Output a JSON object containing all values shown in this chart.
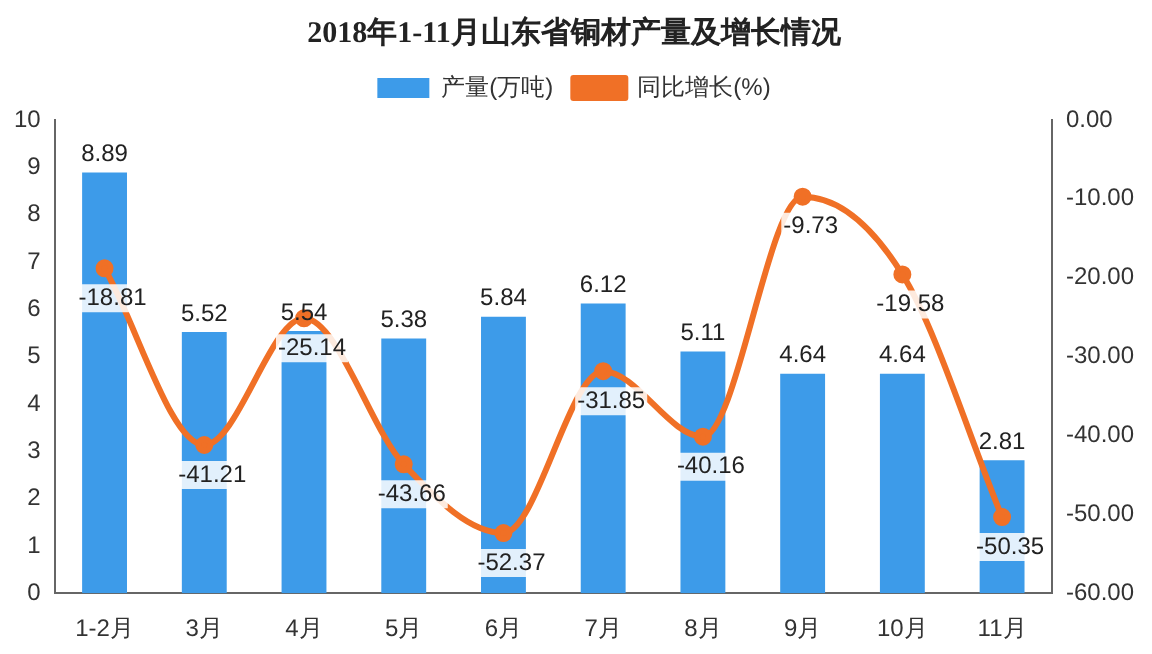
{
  "chart_data": {
    "type": "bar",
    "title": "2018年1-11月山东省铜材产量及增长情况",
    "categories": [
      "1-2月",
      "3月",
      "4月",
      "5月",
      "6月",
      "7月",
      "8月",
      "9月",
      "10月",
      "11月"
    ],
    "series": [
      {
        "name": "产量(万吨)",
        "color": "#3d9be9",
        "values": [
          8.89,
          5.52,
          5.54,
          5.38,
          5.84,
          6.12,
          5.11,
          4.64,
          4.64,
          2.81
        ]
      },
      {
        "name": "同比增长(%)",
        "type": "line",
        "axis": "y2",
        "color": "#f07026",
        "values": [
          -18.81,
          -41.21,
          -25.14,
          -43.66,
          -52.37,
          -31.85,
          -40.16,
          -9.73,
          -19.58,
          -50.35
        ]
      }
    ],
    "ylim": [
      0,
      10
    ],
    "yticks": [
      0,
      1,
      2,
      3,
      4,
      5,
      6,
      7,
      8,
      9,
      10
    ],
    "y2lim": [
      -60,
      0
    ],
    "y2ticks": [
      {
        "value": 0,
        "label": "0.00"
      },
      {
        "value": -10,
        "label": "-10.00"
      },
      {
        "value": -20,
        "label": "-20.00"
      },
      {
        "value": -30,
        "label": "-30.00"
      },
      {
        "value": -40,
        "label": "-40.00"
      },
      {
        "value": -50,
        "label": "-50.00"
      },
      {
        "value": -60,
        "label": "-60.00"
      }
    ],
    "data_labels": true,
    "legend": "top",
    "grid": false,
    "marker": "circle"
  }
}
